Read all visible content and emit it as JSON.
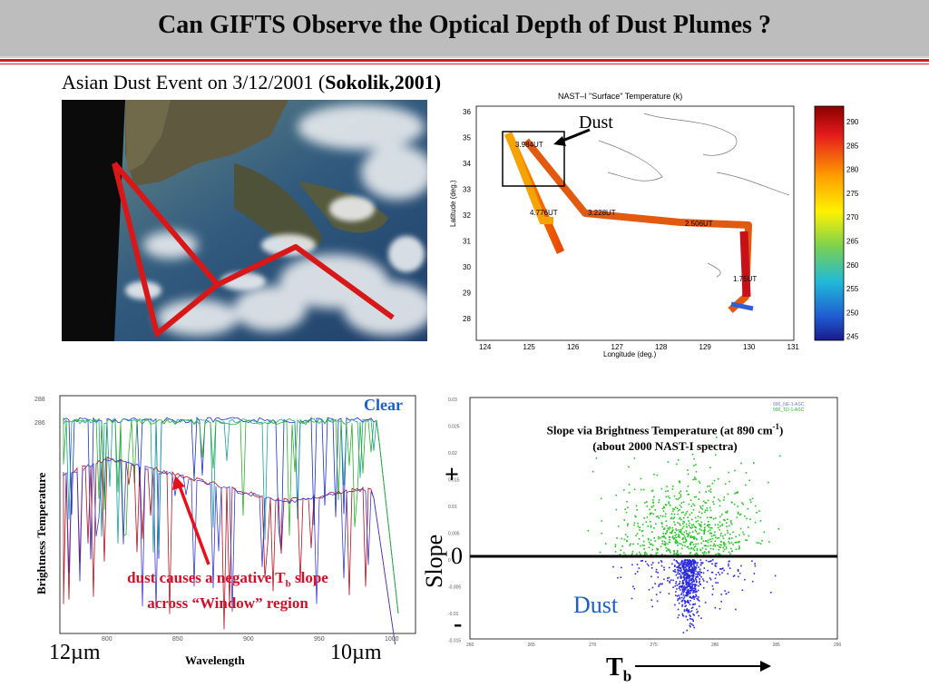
{
  "slide": {
    "title": "Can GIFTS  Observe the Optical Depth of Dust Plumes ?",
    "subtitle_prefix": "Asian Dust Event on 3/12/2001 (",
    "subtitle_cite": "Sokolik,2001)",
    "colors": {
      "title_bg": "#bdbdbd",
      "accent_red": "#d61e1e",
      "dust_blue": "#1a5fc4"
    }
  },
  "satellite_image": {
    "track_color": "#d81818"
  },
  "nast_map": {
    "title": "NAST–I \"Surface\" Temperature (k)",
    "dust_label": "Dust",
    "ylabel": "Latitude (deg.)",
    "xlabel": "Longitude (deg.)",
    "lat_ticks": [
      "36",
      "35",
      "34",
      "33",
      "32",
      "31",
      "30",
      "29",
      "28"
    ],
    "lon_ticks": [
      "124",
      "125",
      "126",
      "127",
      "128",
      "129",
      "130",
      "131"
    ],
    "time_labels": [
      "3.984UT",
      "4.776UT",
      "3.228UT",
      "2.506UT",
      "1.75UT"
    ],
    "colorbar_ticks": [
      "290",
      "285",
      "280",
      "275",
      "270",
      "265",
      "260",
      "255",
      "250",
      "245"
    ]
  },
  "spectrum_plot": {
    "clear_label": "Clear",
    "ylabel": "Brightness Temperature",
    "xlabel": "Wavelength",
    "left_wavelength": "12µm",
    "right_wavelength": "10µm",
    "annotation_line1": "dust causes a negative T",
    "annotation_sub": "b",
    "annotation_line1_end": " slope",
    "annotation_line2": "across “Window” region",
    "x_ticks": [
      "800",
      "850",
      "900",
      "950",
      "1000"
    ],
    "y_ticks": [
      "288",
      "286"
    ]
  },
  "scatter_plot": {
    "title_line1": "Slope via Brightness Temperature (at 890 cm",
    "title_sup": "-1",
    "title_line1_end": ")",
    "title_line2": "(about 2000 NAST-I spectra)",
    "plus_label": "+",
    "zero_label": "0",
    "minus_label": "-",
    "ylabel": "Slope",
    "dust_label": "Dust",
    "tb_label": "T",
    "tb_sub": "b",
    "legend": [
      "990_NE-1-ASC",
      "990_TD-1-ASC"
    ],
    "x_ticks": [
      "260",
      "265",
      "270",
      "275",
      "280",
      "285",
      "290"
    ],
    "y_ticks": [
      "0.03",
      "0.025",
      "0.02",
      "0.015",
      "0.01",
      "0.005",
      "0",
      "-0.005",
      "-0.01",
      "-0.015"
    ]
  }
}
